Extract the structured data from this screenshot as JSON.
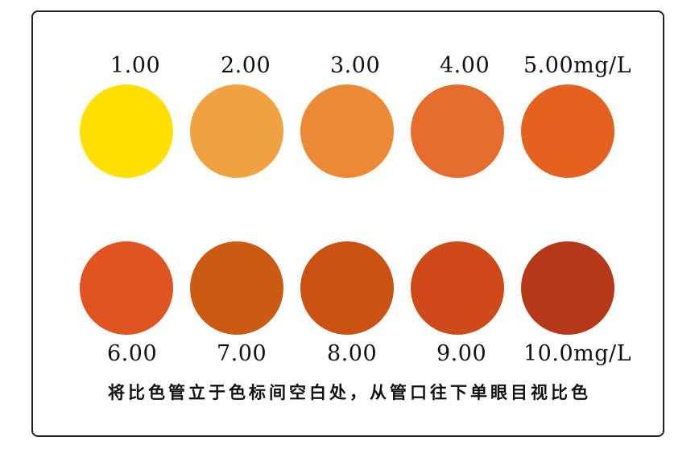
{
  "top_row": [
    {
      "label": "1.00",
      "color": "#FFE000"
    },
    {
      "label": "2.00",
      "color": "#F0A142"
    },
    {
      "label": "3.00",
      "color": "#EB8935"
    },
    {
      "label": "4.00",
      "color": "#E56D2C"
    },
    {
      "label": "5.00mg/L",
      "color": "#E2621E"
    }
  ],
  "bottom_row": [
    {
      "label": "6.00",
      "color": "#DF5522"
    },
    {
      "label": "7.00",
      "color": "#C95C12"
    },
    {
      "label": "8.00",
      "color": "#CA5212"
    },
    {
      "label": "9.00",
      "color": "#CE4A18"
    },
    {
      "label": "10.0mg/L",
      "color": "#B53918"
    }
  ],
  "instruction": "将比色管立于色标间空白处，从管口往下单眼目视比色"
}
